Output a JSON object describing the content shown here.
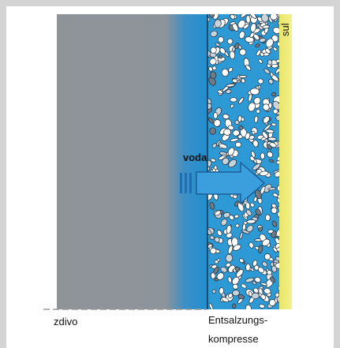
{
  "labels": {
    "water": "voda",
    "salt": "sul",
    "wall": "zdivo",
    "compress": [
      "Entsalzungs-",
      "kompresse"
    ]
  }
}
